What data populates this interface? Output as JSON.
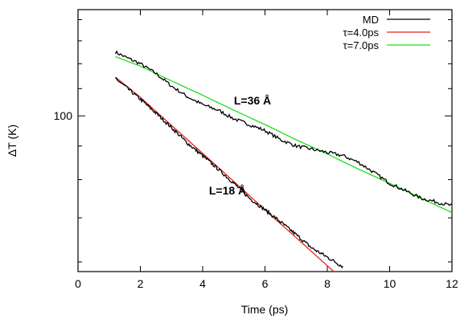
{
  "chart_data": {
    "type": "line",
    "xlabel": "Time (ps)",
    "ylabel": "ΔT (K)",
    "xlim": [
      0,
      12
    ],
    "ylim": [
      58,
      145
    ],
    "yscale": "log",
    "grid": false,
    "legend_position": "top-right",
    "x_ticks": [
      0,
      2,
      4,
      6,
      8,
      10,
      12
    ],
    "y_ticks": [
      100
    ],
    "x_tick_labels": [
      "0",
      "2",
      "4",
      "6",
      "8",
      "10",
      "12"
    ],
    "y_tick_labels": [
      "100"
    ],
    "legend": [
      {
        "label": "MD",
        "color": "#000000"
      },
      {
        "label": "τ=4.0ps",
        "color": "#e8211d"
      },
      {
        "label": "τ=7.0ps",
        "color": "#1fdd1f"
      }
    ],
    "annotations": [
      {
        "text": "L=36 Å",
        "x": 5.6,
        "y": 104
      },
      {
        "text": "L=18 Å",
        "x": 4.8,
        "y": 76
      }
    ],
    "series": [
      {
        "name": "MD",
        "color": "#000000",
        "curves": [
          {
            "x": [
              1.2,
              1.5,
              2.0,
              2.5,
              3.0,
              3.5,
              4.0,
              4.5,
              5.0,
              5.5,
              6.0,
              6.5,
              7.0,
              7.5,
              8.0,
              8.5,
              9.0,
              9.5,
              10.0,
              10.5,
              11.0,
              11.5,
              12.0
            ],
            "y": [
              125,
              123,
              120,
              116,
              111,
              107,
              104,
              102,
              99,
              97,
              95,
              92,
              90,
              89,
              88,
              87,
              85,
              82,
              79,
              77,
              75,
              74,
              73
            ]
          },
          {
            "x": [
              1.2,
              1.5,
              2.0,
              2.5,
              3.0,
              3.5,
              4.0,
              4.5,
              5.0,
              5.5,
              6.0,
              6.5,
              7.0,
              7.5,
              8.0,
              8.5
            ],
            "y": [
              114,
              111,
              106,
              101,
              96,
              91,
              87,
              83,
              79,
              75,
              72,
              69,
              66,
              63,
              61,
              59
            ]
          }
        ]
      },
      {
        "name": "τ=4.0ps",
        "color": "#e8211d",
        "curves": [
          {
            "x": [
              1.2,
              2.0,
              3.0,
              4.0,
              5.0,
              6.0,
              7.0,
              8.0,
              9.0
            ],
            "y": [
              114.5,
              106.7,
              96.7,
              87.7,
              79.5,
              72.0,
              65.3,
              59.2,
              53.7
            ]
          }
        ]
      },
      {
        "name": "τ=7.0ps",
        "color": "#1fdd1f",
        "curves": [
          {
            "x": [
              1.2,
              2.0,
              3.0,
              4.0,
              5.0,
              6.0,
              7.0,
              8.0,
              9.0,
              10.0,
              11.0,
              12.0
            ],
            "y": [
              123.0,
              119.0,
              113.0,
              107.5,
              102.0,
              97.0,
              92.0,
              87.5,
              83.0,
              79.0,
              75.0,
              71.3
            ]
          }
        ]
      }
    ]
  }
}
